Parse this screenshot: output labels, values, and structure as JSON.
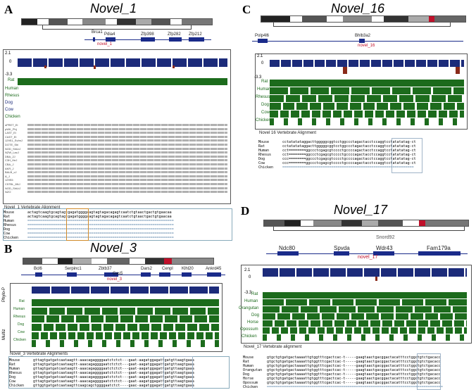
{
  "panels": {
    "A": {
      "letter": "A",
      "title": "Novel_1",
      "genes": [
        "Brca1",
        "Pdia4",
        "Zfp398",
        "Zfp282",
        "Zfp212"
      ],
      "novel": "novel_1",
      "scale": [
        "2.1",
        "0",
        "-3.3"
      ],
      "species": [
        "Rat",
        "Human",
        "Rhesus",
        "Dog",
        "Cow",
        "Chicken"
      ],
      "strains": [
        "sPRET_Ei",
        "pWK_Phj",
        "LAST_Ei",
        "CAST_Ei",
        "129S1_SvImJ",
        "DOTE_Shi",
        "NOD_ShiLtJ",
        "NZW_LacJ",
        "DBA_2J",
        "C3H_HeJ",
        "CBA_J",
        "AKR_J",
        "BALB_cJ",
        "A_J",
        "129S5",
        "C57BL_6NJ",
        "NOD_ShiLtJ",
        "NZO"
      ],
      "aln_title": "Novel_1 Vertebrate Alignment",
      "aln": [
        {
          "n": "Mouse",
          "s": "actagtcaagtgcagtagtgagatggggaagtagtagacagagtcaatctgtaactgactgtgaacaa"
        },
        {
          "n": "Rat",
          "s": "actagtcaagtgcagtagtgagatggggaagtagtagacagagtcaatctgtaactgactgtgaacaa"
        },
        {
          "n": "Human",
          "s": "====================================================================="
        },
        {
          "n": "Rhesus",
          "s": "====================================================================="
        },
        {
          "n": "Dog",
          "s": "====================================================================="
        },
        {
          "n": "Cow",
          "s": "====================================================================="
        },
        {
          "n": "Chicken",
          "s": "====================================================================="
        }
      ]
    },
    "B": {
      "letter": "B",
      "title": "Novel_3",
      "genes": [
        "Bcl6",
        "Serpinc1",
        "Zbtb37",
        "Gas5",
        "Dars2",
        "Cenpl",
        "Klhl20",
        "Ankrd45"
      ],
      "novel": "novel_3",
      "species": [
        "Rat",
        "Human",
        "Rhesus",
        "Dog",
        "Cow",
        "Chicken"
      ],
      "side": [
        "Phylo-P",
        "Multiz"
      ],
      "aln_title": "Novel_3 Vertebrate Alignments",
      "aln": [
        {
          "n": "Mouse",
          "s": "gttagtgatgatcaataagtt-aaacagaggggaatctctct---gaat-aagatggagattgatgttaagtgaaa"
        },
        {
          "n": "Rat",
          "s": "gttagtgatgatcaataagtt-aaacagaggggaatctctct---gaat-aagatggagattgatgttaagtgaaa"
        },
        {
          "n": "Human",
          "s": "gttagtgatgatcaataagtt-aaacagaggggaatctctct---gaat-aagatggagattgatgttaagtgaaa"
        },
        {
          "n": "Rhesus",
          "s": "gttagtgatgatcaataagtt-aaacagaggggaatctctct---gaat-aagatggagattgatgttaagtgaaa"
        },
        {
          "n": "Dog",
          "s": "gttagtgatgatcaataagtt-aaacagaggggaatctctct---gaat-aagatggagattgatgttaagtgaaa"
        },
        {
          "n": "Cow",
          "s": "gttagtgatgatcaataagtt-aaacagaggggaatctctct---gaat-aagatggagattgatgttaagtgaaa"
        },
        {
          "n": "Chicken",
          "s": "gttggtgatgatcaataagttcaagcagctggggaatctct----gaac-aagatggagattgatgttaagtgaaa"
        }
      ]
    },
    "C": {
      "letter": "C",
      "title": "Novel_16",
      "genes": [
        "Polp4l6",
        "Bhlb3a2"
      ],
      "novel": "novel_16",
      "scale": [
        "2.1",
        "0",
        "-3.3"
      ],
      "species": [
        "Rat",
        "Human",
        "Rhesus",
        "Dog",
        "Cow",
        "Chicken"
      ],
      "aln_title": "Novel 16 Vertebrate Alignment",
      "aln": [
        {
          "n": "Mouse",
          "s": "cctatatataggacttgggggcggtcctggccctagactacctccaggtcctatatatag-ct"
        },
        {
          "n": "Rat",
          "s": "cctatatataggacttgggggcggtcctggccctagactacctccaggtcctatatatag-ct"
        },
        {
          "n": "Human",
          "s": "cct========ggccctcgagcgtcccctgccccagactacctccaggtcctatatatag-ct"
        },
        {
          "n": "Rhesus",
          "s": "cct========ggccctcgagcgtcccctgccccagactacctccaggtcctatatatag-ct"
        },
        {
          "n": "Dog",
          "s": "ccc========ggccctcgagcgtcccctgccccagactacctccaggtcctatatatag-ct"
        },
        {
          "n": "Cow",
          "s": "ccc========ggccctcgagcgtcccctgccccagactacctccaggtcctatatatag-ct"
        },
        {
          "n": "Chicken",
          "s": "=============================================================="
        }
      ]
    },
    "D": {
      "letter": "D",
      "title": "Novel_17",
      "genes": [
        "Ndc80",
        "Spvda",
        "Wdr43",
        "Fam179a"
      ],
      "snord": "Snord92",
      "novel": "novel_17",
      "scale": [
        "2.1",
        "0",
        "-3.3"
      ],
      "species": [
        "Rat",
        "Human",
        "Orangutan",
        "Dog",
        "Horse",
        "Opossum",
        "Chicken"
      ],
      "aln_title": "Novel_17 Vertebrate alignment",
      "aln": [
        {
          "n": "Mouse",
          "s": "gtgctgtgatgactaaaattgtggtttcgactcac-t-----gaagtaactgacggactacatttcctggctgtctgacacc"
        },
        {
          "n": "Rat",
          "s": "gtgctgtgatgactaaaattgtggtttcgactcac-t-----gaagtaactgacggactacatttcctggctgtctgacacc"
        },
        {
          "n": "Human",
          "s": "gtgctgtgatgactaaaattgtggtttcgactcac-t-----gaagtaactgacggactacatttcctggctgtctgacacc"
        },
        {
          "n": "Orangutan",
          "s": "gtgctgtgatgactaaaattgtggtttcgactcac-t-----gaagtaactgacggactacatttcctggctgtctgacacc"
        },
        {
          "n": "Dog",
          "s": "gtgctgtgatgactaaaattgtggtttcgactcac-t-----gaagtaactgacggactacatttcctggctgtctgacacc"
        },
        {
          "n": "Horse",
          "s": "gtgctgtgatgactaaaattgtggtttcgactcac-t-----gaagtaactgacggactacatttcctggctgtctgacacc"
        },
        {
          "n": "Opossum",
          "s": "gtgctgtgatgactaaaattgtggtttcgactcac-t-----gaagtaactgacggactacatttcctggctgtctgacacc"
        },
        {
          "n": "Chicken",
          "s": "==================================================================================="
        }
      ]
    }
  },
  "colors": {
    "conservation": "#1c2b7a",
    "negative": "#8a2a1a",
    "multiz": "#1c6b1c",
    "novel": "#c0102a",
    "gene": "#1a2b8a"
  }
}
